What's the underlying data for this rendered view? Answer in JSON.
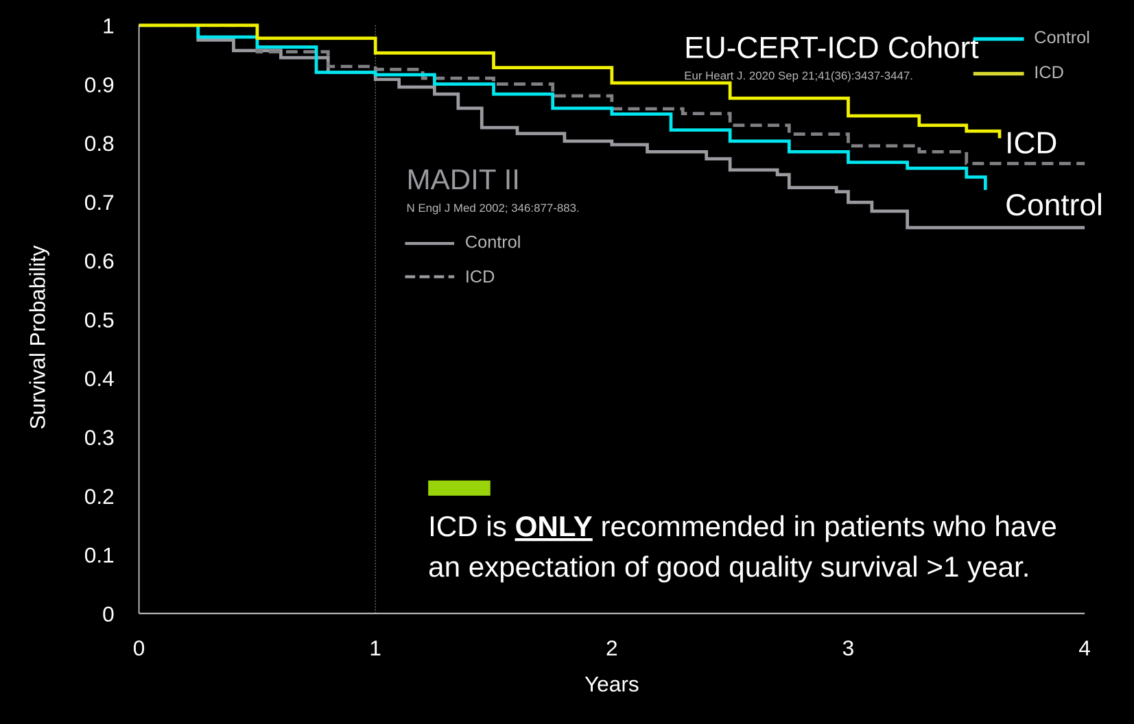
{
  "chart_data": {
    "type": "line",
    "step": true,
    "xlabel": "Years",
    "ylabel": "Survival Probability",
    "xlim": [
      0,
      4
    ],
    "ylim": [
      0,
      1
    ],
    "xticks": [
      "0",
      "1",
      "2",
      "3",
      "4"
    ],
    "yticks": [
      "0",
      "0.1",
      "0.2",
      "0.3",
      "0.4",
      "0.5",
      "0.6",
      "0.7",
      "0.8",
      "0.9",
      "1"
    ],
    "reference_line_x": 1,
    "groups": [
      {
        "title": "EU-CERT-ICD Cohort",
        "citation": "Eur Heart J. 2020 Sep 21;41(36):3437-3447.",
        "legend": [
          "Control",
          "ICD"
        ]
      },
      {
        "title": "MADIT II",
        "citation": "N Engl J Med 2002; 346:877-883.",
        "legend": [
          "Control",
          "ICD"
        ]
      }
    ],
    "series": [
      {
        "name": "Control",
        "group": "MADIT II",
        "color": "#9a9aa0",
        "dash": false,
        "x": [
          0,
          0.25,
          0.4,
          0.6,
          0.8,
          1.0,
          1.1,
          1.25,
          1.35,
          1.45,
          1.6,
          1.8,
          2.0,
          2.15,
          2.4,
          2.5,
          2.7,
          2.75,
          2.95,
          3.0,
          3.1,
          3.25,
          4.0
        ],
        "y": [
          1,
          0.975,
          0.957,
          0.945,
          0.92,
          0.908,
          0.895,
          0.883,
          0.859,
          0.826,
          0.816,
          0.803,
          0.797,
          0.785,
          0.773,
          0.754,
          0.746,
          0.724,
          0.717,
          0.699,
          0.684,
          0.656,
          0.656
        ]
      },
      {
        "name": "ICD",
        "group": "MADIT II",
        "color": "#808085",
        "dash": true,
        "x": [
          0,
          0.5,
          0.8,
          1.0,
          1.2,
          1.5,
          1.75,
          2.0,
          2.3,
          2.5,
          2.75,
          3.0,
          3.3,
          3.5,
          4.0
        ],
        "y": [
          1,
          0.955,
          0.93,
          0.925,
          0.91,
          0.9,
          0.88,
          0.858,
          0.85,
          0.83,
          0.815,
          0.795,
          0.785,
          0.765,
          0.765
        ]
      },
      {
        "name": "Control",
        "group": "EU-CERT-ICD Cohort",
        "color": "#00e5ee",
        "dash": false,
        "x": [
          0,
          0.25,
          0.5,
          0.75,
          1.0,
          1.25,
          1.5,
          1.75,
          2.0,
          2.25,
          2.5,
          2.75,
          3.0,
          3.25,
          3.5,
          3.58
        ],
        "y": [
          1,
          0.98,
          0.963,
          0.92,
          0.916,
          0.9,
          0.883,
          0.859,
          0.849,
          0.822,
          0.803,
          0.785,
          0.767,
          0.757,
          0.742,
          0.72
        ]
      },
      {
        "name": "ICD",
        "group": "EU-CERT-ICD Cohort",
        "color": "#f0f000",
        "dash": false,
        "x": [
          0,
          0.5,
          1.0,
          1.5,
          2.0,
          2.5,
          3.0,
          3.3,
          3.5,
          3.64
        ],
        "y": [
          1,
          0.978,
          0.953,
          0.928,
          0.902,
          0.876,
          0.846,
          0.83,
          0.82,
          0.808
        ]
      }
    ],
    "end_labels": [
      "ICD",
      "Control"
    ],
    "note": {
      "accent_color": "#99d30a",
      "line1_before": "ICD is ",
      "line1_emphasis": "ONLY",
      "line1_after": " recommended in patients who have",
      "line2": "an expectation of good quality survival >1 year."
    }
  }
}
